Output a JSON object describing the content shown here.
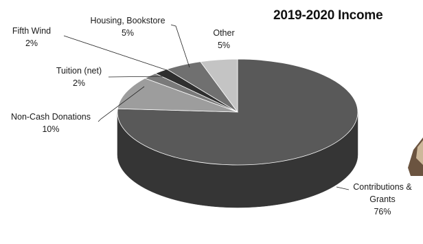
{
  "chart_data": {
    "type": "pie",
    "title": "2019-2020 Income",
    "slices": [
      {
        "label": "Contributions & Grants",
        "label_lines": [
          "Contributions &",
          "Grants"
        ],
        "value": 76,
        "value_text": "76%",
        "color": "#595959"
      },
      {
        "label": "Non-Cash Donations",
        "label_lines": [
          "Non-Cash Donations"
        ],
        "value": 10,
        "value_text": "10%",
        "color": "#9d9d9d"
      },
      {
        "label": "Tuition (net)",
        "label_lines": [
          "Tuition (net)"
        ],
        "value": 2,
        "value_text": "2%",
        "color": "#7a7a7a"
      },
      {
        "label": "Fifth Wind",
        "label_lines": [
          "Fifth Wind"
        ],
        "value": 2,
        "value_text": "2%",
        "color": "#2f2f2f"
      },
      {
        "label": "Housing, Bookstore",
        "label_lines": [
          "Housing, Bookstore"
        ],
        "value": 5,
        "value_text": "5%",
        "color": "#707070"
      },
      {
        "label": "Other",
        "label_lines": [
          "Other"
        ],
        "value": 5,
        "value_text": "5%",
        "color": "#c4c4c4"
      }
    ],
    "style": "3d-pie",
    "legend": "none"
  }
}
